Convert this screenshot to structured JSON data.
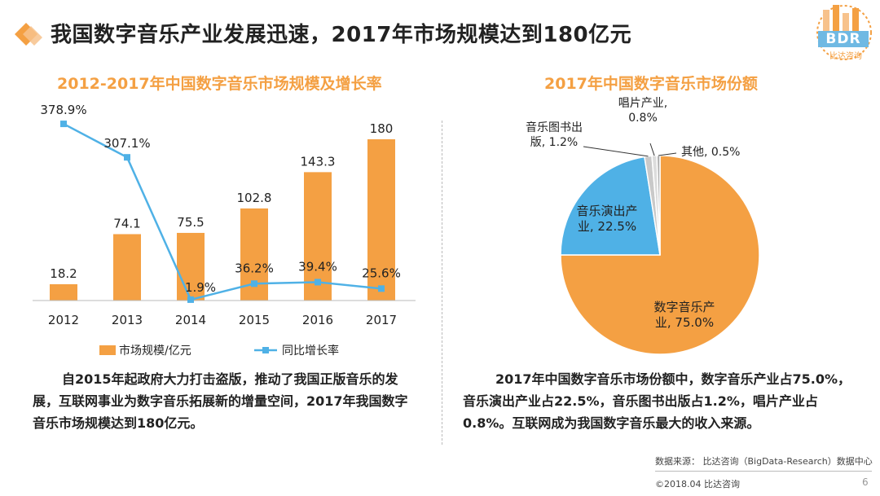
{
  "page": {
    "title": "我国数字音乐产业发展迅速，2017年市场规模达到180亿元",
    "logo_text": "BDR",
    "logo_subtext": "比达咨询",
    "page_number": "6"
  },
  "colors": {
    "bar": "#f4a043",
    "line": "#4fb1e6",
    "title_accent": "#f4a043",
    "pie_main": "#f4a043",
    "pie_perf": "#4fb1e6",
    "pie_small": "#c9c9c9"
  },
  "left_text": "自2015年起政府大力打击盗版，推动了我国正版音乐的发展，互联网事业为数字音乐拓展新的增量空间，2017年我国数字音乐市场规模达到180亿元。",
  "right_text": "2017年中国数字音乐市场份额中，数字音乐产业占75.0%，音乐演出产业占22.5%，音乐图书出版占1.2%，唱片产业占0.8%。互联网成为我国数字音乐最大的收入来源。",
  "footer": {
    "source": "数据来源： 比达咨询（BigData-Research）数据中心",
    "copyright": "©2018.04   比达咨询"
  },
  "chart_data": [
    {
      "type": "bar",
      "title": "2012-2017年中国数字音乐市场规模及增长率",
      "categories": [
        "2012",
        "2013",
        "2014",
        "2015",
        "2016",
        "2017"
      ],
      "series": [
        {
          "name": "市场规模/亿元",
          "kind": "bar",
          "values": [
            18.2,
            74.1,
            75.5,
            102.8,
            143.3,
            180
          ],
          "labels": [
            "18.2",
            "74.1",
            "75.5",
            "102.8",
            "143.3",
            "180"
          ]
        },
        {
          "name": "同比增长率",
          "kind": "line",
          "values": [
            378.9,
            307.1,
            1.9,
            36.2,
            39.4,
            25.6
          ],
          "labels": [
            "378.9%",
            "307.1%",
            "1.9%",
            "36.2%",
            "39.4%",
            "25.6%"
          ]
        }
      ],
      "bar_ylim": [
        0,
        190
      ],
      "line_ylim": [
        0,
        400
      ],
      "legend_position": "bottom"
    },
    {
      "type": "pie",
      "title": "2017年中国数字音乐市场份额",
      "slices": [
        {
          "name": "数字音乐产业",
          "value": 75.0,
          "label": "数字音乐产\n业, 75.0%"
        },
        {
          "name": "音乐演出产业",
          "value": 22.5,
          "label": "音乐演出产\n业, 22.5%"
        },
        {
          "name": "音乐图书出版",
          "value": 1.2,
          "label": "音乐图书出\n版, 1.2%"
        },
        {
          "name": "唱片产业",
          "value": 0.8,
          "label": "唱片产业,\n0.8%"
        },
        {
          "name": "其他",
          "value": 0.5,
          "label": "其他, 0.5%"
        }
      ]
    }
  ]
}
